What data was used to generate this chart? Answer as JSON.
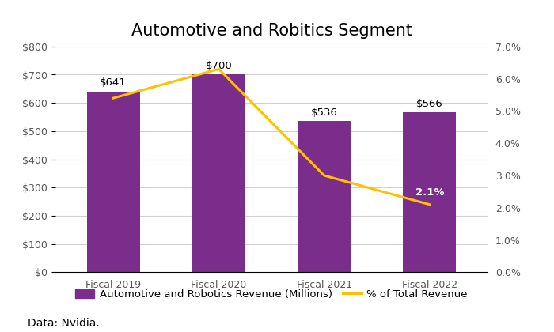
{
  "title": "Automotive and Robitics Segment",
  "categories": [
    "Fiscal 2019",
    "Fiscal 2020",
    "Fiscal 2021",
    "Fiscal 2022"
  ],
  "revenues": [
    641,
    700,
    536,
    566
  ],
  "pct_total": [
    5.4,
    6.3,
    3.0,
    2.1
  ],
  "bar_color": "#7B2D8B",
  "line_color": "#FFC000",
  "bar_labels": [
    "$641",
    "$700",
    "$536",
    "$566"
  ],
  "pct_label_idx": 3,
  "pct_label_val": "2.1%",
  "ylim_left": [
    0,
    800
  ],
  "ylim_right": [
    0,
    7.0
  ],
  "yticks_left": [
    0,
    100,
    200,
    300,
    400,
    500,
    600,
    700,
    800
  ],
  "ytick_labels_left": [
    "$0",
    "$100",
    "$200",
    "$300",
    "$400",
    "$500",
    "$600",
    "$700",
    "$800"
  ],
  "yticks_right": [
    0.0,
    1.0,
    2.0,
    3.0,
    4.0,
    5.0,
    6.0,
    7.0
  ],
  "ytick_labels_right": [
    "0.0%",
    "1.0%",
    "2.0%",
    "3.0%",
    "4.0%",
    "5.0%",
    "6.0%",
    "7.0%"
  ],
  "legend_bar_label": "Automotive and Robotics Revenue (Millions)",
  "legend_line_label": "% of Total Revenue",
  "footnote": "Data: Nvidia.",
  "background_color": "#ffffff",
  "grid_color": "#d0d0d0",
  "title_fontsize": 15,
  "label_fontsize": 9.5,
  "tick_fontsize": 9,
  "footnote_fontsize": 10
}
